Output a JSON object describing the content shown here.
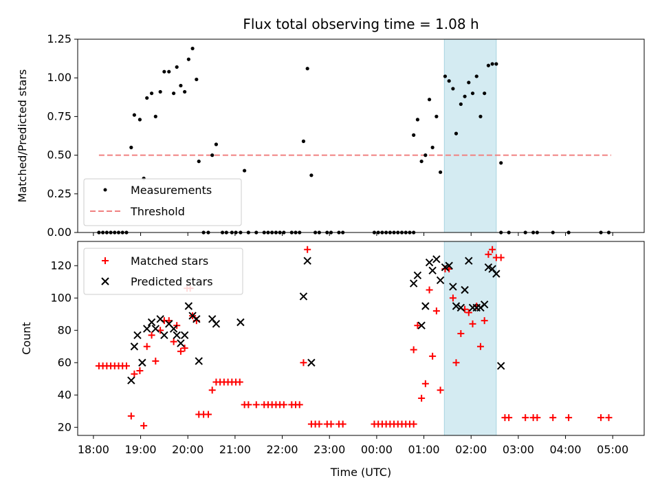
{
  "chart_data": [
    {
      "type": "scatter",
      "title": "Flux total observing time = 1.08 h",
      "ylabel": "Matched/Predicted stars",
      "xlabel": "",
      "ylim": [
        0,
        1.25
      ],
      "xlim": [
        "17:40",
        "05:40"
      ],
      "yticks": [
        "0.00",
        "0.25",
        "0.50",
        "0.75",
        "1.00",
        "1.25"
      ],
      "highlight_span": [
        "01:26",
        "02:32"
      ],
      "highlight_color": "#d4ebf2",
      "threshold": {
        "name": "Threshold",
        "y": 0.5,
        "x": [
          "18:07",
          "04:58"
        ],
        "color": "#f08080"
      },
      "legend": {
        "placement": "lower-left",
        "entries": [
          "Measurements",
          "Threshold"
        ]
      },
      "series": [
        {
          "name": "Measurements",
          "marker": "dot",
          "color": "#000000",
          "points": [
            [
              "18:07",
              0
            ],
            [
              "18:12",
              0
            ],
            [
              "18:17",
              0
            ],
            [
              "18:22",
              0
            ],
            [
              "18:27",
              0
            ],
            [
              "18:32",
              0
            ],
            [
              "18:37",
              0
            ],
            [
              "18:42",
              0
            ],
            [
              "18:48",
              0.55
            ],
            [
              "18:52",
              0.76
            ],
            [
              "18:59",
              0.73
            ],
            [
              "19:04",
              0.35
            ],
            [
              "19:08",
              0.87
            ],
            [
              "19:14",
              0.9
            ],
            [
              "19:19",
              0.75
            ],
            [
              "19:25",
              0.91
            ],
            [
              "19:30",
              1.04
            ],
            [
              "19:36",
              1.04
            ],
            [
              "19:42",
              0.9
            ],
            [
              "19:46",
              1.07
            ],
            [
              "19:51",
              0.95
            ],
            [
              "19:56",
              0.91
            ],
            [
              "20:01",
              1.12
            ],
            [
              "20:06",
              1.19
            ],
            [
              "20:11",
              0.99
            ],
            [
              "20:14",
              0.46
            ],
            [
              "20:20",
              0
            ],
            [
              "20:26",
              0
            ],
            [
              "20:31",
              0.5
            ],
            [
              "20:36",
              0.57
            ],
            [
              "20:44",
              0
            ],
            [
              "20:49",
              0
            ],
            [
              "20:56",
              0
            ],
            [
              "21:01",
              0
            ],
            [
              "21:07",
              0
            ],
            [
              "21:12",
              0.4
            ],
            [
              "21:17",
              0
            ],
            [
              "21:27",
              0
            ],
            [
              "21:37",
              0
            ],
            [
              "21:42",
              0
            ],
            [
              "21:47",
              0
            ],
            [
              "21:52",
              0
            ],
            [
              "21:57",
              0
            ],
            [
              "22:02",
              0
            ],
            [
              "22:12",
              0
            ],
            [
              "22:17",
              0
            ],
            [
              "22:22",
              0
            ],
            [
              "22:27",
              0.59
            ],
            [
              "22:32",
              1.06
            ],
            [
              "22:37",
              0.37
            ],
            [
              "22:42",
              0
            ],
            [
              "22:47",
              0
            ],
            [
              "22:57",
              0
            ],
            [
              "23:02",
              0
            ],
            [
              "23:12",
              0
            ],
            [
              "23:17",
              0
            ],
            [
              "23:57",
              0
            ],
            [
              "24:02",
              0
            ],
            [
              "24:07",
              0
            ],
            [
              "24:12",
              0
            ],
            [
              "24:17",
              0
            ],
            [
              "24:22",
              0
            ],
            [
              "24:27",
              0
            ],
            [
              "24:32",
              0
            ],
            [
              "24:37",
              0
            ],
            [
              "24:42",
              0
            ],
            [
              "24:47",
              0
            ],
            [
              "24:47",
              0.63
            ],
            [
              "24:52",
              0.73
            ],
            [
              "24:57",
              0.46
            ],
            [
              "25:02",
              0.5
            ],
            [
              "25:07",
              0.86
            ],
            [
              "25:11",
              0.55
            ],
            [
              "25:16",
              0.75
            ],
            [
              "25:21",
              0.39
            ],
            [
              "25:27",
              1.01
            ],
            [
              "25:32",
              0.98
            ],
            [
              "25:37",
              0.93
            ],
            [
              "25:41",
              0.64
            ],
            [
              "25:47",
              0.83
            ],
            [
              "25:52",
              0.88
            ],
            [
              "25:57",
              0.97
            ],
            [
              "26:02",
              0.9
            ],
            [
              "26:07",
              1.01
            ],
            [
              "26:12",
              0.75
            ],
            [
              "26:17",
              0.9
            ],
            [
              "26:22",
              1.08
            ],
            [
              "26:27",
              1.09
            ],
            [
              "26:32",
              1.09
            ],
            [
              "26:38",
              0.45
            ],
            [
              "26:38",
              0
            ],
            [
              "26:48",
              0
            ],
            [
              "27:09",
              0
            ],
            [
              "27:19",
              0
            ],
            [
              "27:24",
              0
            ],
            [
              "27:44",
              0
            ],
            [
              "28:04",
              0
            ],
            [
              "28:45",
              0
            ],
            [
              "28:55",
              0
            ]
          ]
        }
      ]
    },
    {
      "type": "scatter",
      "title": "",
      "ylabel": "Count",
      "xlabel": "Time (UTC)",
      "ylim": [
        15,
        135
      ],
      "xlim": [
        "17:40",
        "05:40"
      ],
      "yticks": [
        "20",
        "40",
        "60",
        "80",
        "100",
        "120"
      ],
      "xticks": [
        "18:00",
        "19:00",
        "20:00",
        "21:00",
        "22:00",
        "23:00",
        "00:00",
        "01:00",
        "02:00",
        "03:00",
        "04:00",
        "05:00"
      ],
      "highlight_span": [
        "01:26",
        "02:32"
      ],
      "highlight_color": "#d4ebf2",
      "legend": {
        "placement": "top-left",
        "entries": [
          "Matched stars",
          "Predicted stars"
        ]
      },
      "series": [
        {
          "name": "Matched stars",
          "marker": "plus",
          "color": "#ff0000",
          "points": [
            [
              "18:07",
              58
            ],
            [
              "18:12",
              58
            ],
            [
              "18:17",
              58
            ],
            [
              "18:22",
              58
            ],
            [
              "18:27",
              58
            ],
            [
              "18:32",
              58
            ],
            [
              "18:37",
              58
            ],
            [
              "18:42",
              58
            ],
            [
              "18:48",
              27
            ],
            [
              "18:52",
              53
            ],
            [
              "18:59",
              55
            ],
            [
              "19:04",
              21
            ],
            [
              "19:08",
              70
            ],
            [
              "19:14",
              77
            ],
            [
              "19:19",
              61
            ],
            [
              "19:25",
              80
            ],
            [
              "19:30",
              86
            ],
            [
              "19:36",
              86
            ],
            [
              "19:42",
              73
            ],
            [
              "19:46",
              83
            ],
            [
              "19:51",
              67
            ],
            [
              "19:56",
              69
            ],
            [
              "19:59",
              106
            ],
            [
              "20:03",
              106
            ],
            [
              "20:06",
              89
            ],
            [
              "20:11",
              86
            ],
            [
              "20:14",
              28
            ],
            [
              "20:20",
              28
            ],
            [
              "20:26",
              28
            ],
            [
              "20:31",
              43
            ],
            [
              "20:36",
              48
            ],
            [
              "20:41",
              48
            ],
            [
              "20:46",
              48
            ],
            [
              "20:51",
              48
            ],
            [
              "20:56",
              48
            ],
            [
              "21:01",
              48
            ],
            [
              "21:06",
              48
            ],
            [
              "21:12",
              34
            ],
            [
              "21:17",
              34
            ],
            [
              "21:27",
              34
            ],
            [
              "21:37",
              34
            ],
            [
              "21:42",
              34
            ],
            [
              "21:47",
              34
            ],
            [
              "21:52",
              34
            ],
            [
              "21:57",
              34
            ],
            [
              "22:02",
              34
            ],
            [
              "22:12",
              34
            ],
            [
              "22:17",
              34
            ],
            [
              "22:22",
              34
            ],
            [
              "22:27",
              60
            ],
            [
              "22:32",
              130
            ],
            [
              "22:37",
              22
            ],
            [
              "22:42",
              22
            ],
            [
              "22:47",
              22
            ],
            [
              "22:57",
              22
            ],
            [
              "23:02",
              22
            ],
            [
              "23:12",
              22
            ],
            [
              "23:17",
              22
            ],
            [
              "23:57",
              22
            ],
            [
              "24:02",
              22
            ],
            [
              "24:07",
              22
            ],
            [
              "24:12",
              22
            ],
            [
              "24:17",
              22
            ],
            [
              "24:22",
              22
            ],
            [
              "24:27",
              22
            ],
            [
              "24:32",
              22
            ],
            [
              "24:37",
              22
            ],
            [
              "24:42",
              22
            ],
            [
              "24:47",
              22
            ],
            [
              "24:47",
              68
            ],
            [
              "24:52",
              83
            ],
            [
              "24:57",
              38
            ],
            [
              "25:02",
              47
            ],
            [
              "25:07",
              105
            ],
            [
              "25:11",
              64
            ],
            [
              "25:16",
              92
            ],
            [
              "25:21",
              43
            ],
            [
              "25:27",
              118
            ],
            [
              "25:32",
              118
            ],
            [
              "25:37",
              100
            ],
            [
              "25:41",
              60
            ],
            [
              "25:47",
              78
            ],
            [
              "25:52",
              93
            ],
            [
              "25:57",
              91
            ],
            [
              "26:02",
              84
            ],
            [
              "26:07",
              95
            ],
            [
              "26:12",
              70
            ],
            [
              "26:17",
              86
            ],
            [
              "26:22",
              127
            ],
            [
              "26:27",
              130
            ],
            [
              "26:32",
              125
            ],
            [
              "26:38",
              125
            ],
            [
              "26:43",
              26
            ],
            [
              "26:48",
              26
            ],
            [
              "27:09",
              26
            ],
            [
              "27:19",
              26
            ],
            [
              "27:24",
              26
            ],
            [
              "27:44",
              26
            ],
            [
              "28:04",
              26
            ],
            [
              "28:45",
              26
            ],
            [
              "28:55",
              26
            ]
          ]
        },
        {
          "name": "Predicted stars",
          "marker": "x",
          "color": "#000000",
          "points": [
            [
              "18:48",
              49
            ],
            [
              "18:52",
              70
            ],
            [
              "18:56",
              77
            ],
            [
              "19:02",
              60
            ],
            [
              "19:08",
              81
            ],
            [
              "19:14",
              85
            ],
            [
              "19:19",
              81
            ],
            [
              "19:25",
              87
            ],
            [
              "19:30",
              77
            ],
            [
              "19:36",
              84
            ],
            [
              "19:42",
              81
            ],
            [
              "19:46",
              77
            ],
            [
              "19:51",
              72
            ],
            [
              "19:56",
              77
            ],
            [
              "20:01",
              95
            ],
            [
              "20:06",
              89
            ],
            [
              "20:11",
              87
            ],
            [
              "20:14",
              61
            ],
            [
              "20:31",
              87
            ],
            [
              "20:36",
              84
            ],
            [
              "21:07",
              85
            ],
            [
              "22:27",
              101
            ],
            [
              "22:32",
              123
            ],
            [
              "22:37",
              60
            ],
            [
              "24:47",
              109
            ],
            [
              "24:52",
              114
            ],
            [
              "24:57",
              83
            ],
            [
              "25:02",
              95
            ],
            [
              "25:07",
              122
            ],
            [
              "25:11",
              117
            ],
            [
              "25:16",
              124
            ],
            [
              "25:21",
              111
            ],
            [
              "25:27",
              119
            ],
            [
              "25:32",
              120
            ],
            [
              "25:37",
              107
            ],
            [
              "25:41",
              95
            ],
            [
              "25:47",
              94
            ],
            [
              "25:52",
              105
            ],
            [
              "25:57",
              123
            ],
            [
              "26:02",
              94
            ],
            [
              "26:07",
              94
            ],
            [
              "26:12",
              94
            ],
            [
              "26:17",
              96
            ],
            [
              "26:22",
              119
            ],
            [
              "26:27",
              118
            ],
            [
              "26:32",
              115
            ],
            [
              "26:38",
              58
            ]
          ]
        }
      ]
    }
  ]
}
